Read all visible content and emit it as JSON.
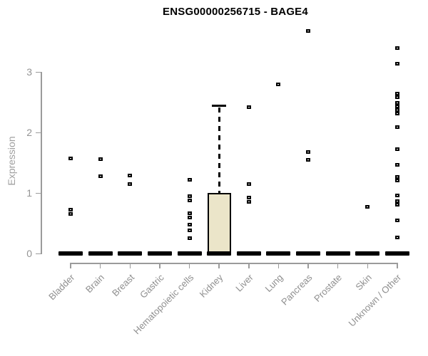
{
  "title": "ENSG00000256715 - BAGE4",
  "chart_data": {
    "type": "boxplot",
    "title": "ENSG00000256715 - BAGE4",
    "xlabel": "",
    "ylabel": "Expression",
    "ylim": [
      0,
      3.8
    ],
    "yticks": [
      0,
      1,
      2,
      3
    ],
    "grid": false,
    "legend": "none",
    "colors": {
      "box_fill": "#ebe5c9",
      "box_border": "#000000",
      "axis": "#9b9b9b",
      "tick_label": "#949494",
      "title": "#000000",
      "marker": "#000000"
    },
    "categories": [
      "Bladder",
      "Brain",
      "Breast",
      "Gastric",
      "Hematopoietic cells",
      "Kidney",
      "Liver",
      "Lung",
      "Pancreas",
      "Prostate",
      "Skin",
      "Unknown / Other"
    ],
    "boxes": [
      {
        "category": "Bladder",
        "q1": 0,
        "median": 0,
        "q3": 0,
        "whisker_low": 0,
        "whisker_high": 0,
        "points": [
          1.57,
          0.72,
          0.65
        ]
      },
      {
        "category": "Brain",
        "q1": 0,
        "median": 0,
        "q3": 0,
        "whisker_low": 0,
        "whisker_high": 0,
        "points": [
          1.56,
          1.28
        ]
      },
      {
        "category": "Breast",
        "q1": 0,
        "median": 0,
        "q3": 0,
        "whisker_low": 0,
        "whisker_high": 0,
        "points": [
          1.29,
          1.15
        ]
      },
      {
        "category": "Gastric",
        "q1": 0,
        "median": 0,
        "q3": 0,
        "whisker_low": 0,
        "whisker_high": 0,
        "points": []
      },
      {
        "category": "Hematopoietic cells",
        "q1": 0,
        "median": 0,
        "q3": 0,
        "whisker_low": 0,
        "whisker_high": 0,
        "points": [
          1.22,
          0.95,
          0.88,
          0.66,
          0.6,
          0.48,
          0.38,
          0.25
        ]
      },
      {
        "category": "Kidney",
        "q1": 0,
        "median": 0,
        "q3": 1.0,
        "whisker_low": 0,
        "whisker_high": 2.45,
        "points": []
      },
      {
        "category": "Liver",
        "q1": 0,
        "median": 0,
        "q3": 0,
        "whisker_low": 0,
        "whisker_high": 0,
        "points": [
          2.42,
          1.15,
          0.92,
          0.85
        ]
      },
      {
        "category": "Lung",
        "q1": 0,
        "median": 0,
        "q3": 0,
        "whisker_low": 0,
        "whisker_high": 0,
        "points": [
          2.8
        ]
      },
      {
        "category": "Pancreas",
        "q1": 0,
        "median": 0,
        "q3": 0,
        "whisker_low": 0,
        "whisker_high": 0,
        "points": [
          3.68,
          1.68,
          1.55
        ]
      },
      {
        "category": "Prostate",
        "q1": 0,
        "median": 0,
        "q3": 0,
        "whisker_low": 0,
        "whisker_high": 0,
        "points": []
      },
      {
        "category": "Skin",
        "q1": 0,
        "median": 0,
        "q3": 0,
        "whisker_low": 0,
        "whisker_high": 0,
        "points": [
          0.77
        ]
      },
      {
        "category": "Unknown / Other",
        "q1": 0,
        "median": 0,
        "q3": 0,
        "whisker_low": 0,
        "whisker_high": 0,
        "points": [
          3.4,
          3.14,
          2.64,
          2.58,
          2.49,
          2.43,
          2.37,
          2.31,
          2.09,
          1.72,
          1.46,
          1.27,
          1.21,
          0.96,
          0.87,
          0.81,
          0.55,
          0.27
        ]
      }
    ]
  }
}
